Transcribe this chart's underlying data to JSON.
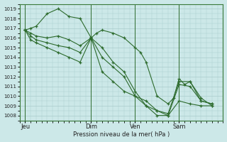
{
  "bg_color": "#cce8e8",
  "grid_color": "#aacccc",
  "line_color": "#2d6b2d",
  "xlabel": "Pression niveau de la mer( hPa )",
  "ylim": [
    1007.5,
    1019.5
  ],
  "yticks": [
    1008,
    1009,
    1010,
    1011,
    1012,
    1013,
    1014,
    1015,
    1016,
    1017,
    1018,
    1019
  ],
  "xtick_labels": [
    "Jeu",
    "Dim",
    "Ven",
    "Sam"
  ],
  "xtick_positions": [
    0,
    36,
    60,
    84
  ],
  "vline_positions": [
    0,
    36,
    60,
    84
  ],
  "xlim": [
    -3,
    108
  ],
  "series": [
    {
      "x": [
        0,
        3,
        6,
        12,
        18,
        24,
        30,
        36,
        39,
        42,
        48,
        54,
        60,
        63,
        66,
        72,
        78,
        81,
        84,
        87,
        90,
        96,
        102
      ],
      "y": [
        1016.8,
        1017.0,
        1017.2,
        1018.5,
        1019.0,
        1018.2,
        1018.0,
        1016.0,
        1016.5,
        1016.8,
        1016.5,
        1016.0,
        1015.0,
        1014.5,
        1013.5,
        1010.0,
        1009.2,
        1009.8,
        1011.8,
        1011.2,
        1011.5,
        1009.8,
        1009.0
      ]
    },
    {
      "x": [
        0,
        3,
        6,
        12,
        18,
        24,
        30,
        36,
        42,
        48,
        54,
        60,
        66,
        72,
        78,
        84,
        90,
        96,
        102
      ],
      "y": [
        1016.8,
        1016.5,
        1016.2,
        1016.0,
        1016.2,
        1015.8,
        1015.2,
        1016.0,
        1015.0,
        1013.5,
        1012.5,
        1010.5,
        1009.0,
        1008.5,
        1008.2,
        1011.5,
        1011.5,
        1009.5,
        1009.2
      ]
    },
    {
      "x": [
        0,
        3,
        6,
        12,
        18,
        24,
        30,
        36,
        42,
        48,
        54,
        60,
        66,
        72,
        78,
        84,
        90,
        96,
        102
      ],
      "y": [
        1016.8,
        1016.2,
        1015.8,
        1015.5,
        1015.2,
        1015.0,
        1014.5,
        1016.0,
        1014.0,
        1013.0,
        1012.0,
        1010.0,
        1009.5,
        1008.5,
        1008.0,
        1011.2,
        1011.0,
        1009.5,
        1009.2
      ]
    },
    {
      "x": [
        0,
        3,
        6,
        12,
        18,
        24,
        30,
        36,
        42,
        48,
        54,
        60,
        66,
        72,
        78,
        84,
        90,
        96,
        102
      ],
      "y": [
        1016.8,
        1015.8,
        1015.5,
        1015.0,
        1014.5,
        1014.0,
        1013.5,
        1016.0,
        1012.5,
        1011.5,
        1010.5,
        1010.0,
        1009.0,
        1008.0,
        1008.0,
        1009.5,
        1009.2,
        1009.0,
        1009.0
      ]
    }
  ]
}
